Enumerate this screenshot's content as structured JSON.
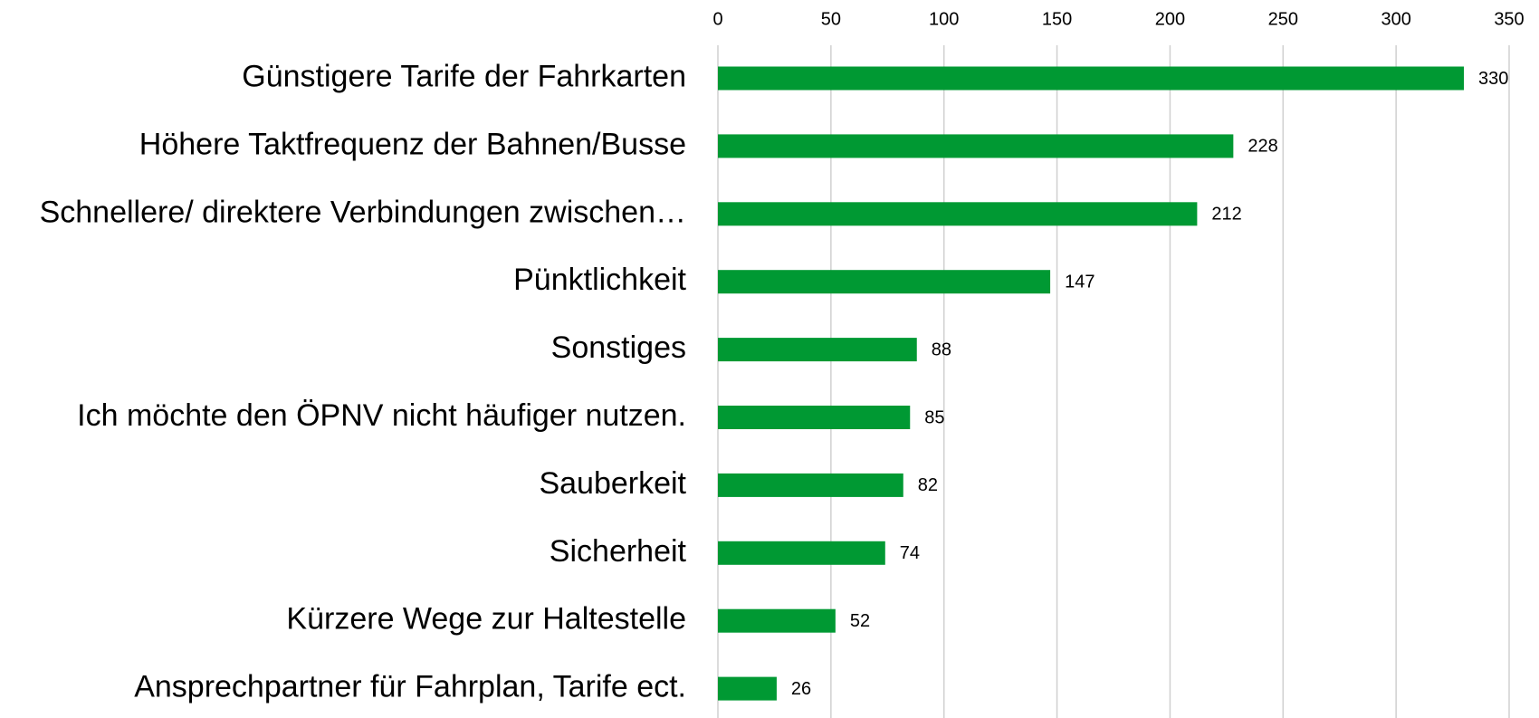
{
  "chart_data": {
    "type": "bar",
    "orientation": "horizontal",
    "categories": [
      "Günstigere Tarife der Fahrkarten",
      "Höhere Taktfrequenz der Bahnen/Busse",
      "Schnellere/ direktere Verbindungen zwischen…",
      "Pünktlichkeit",
      "Sonstiges",
      "Ich möchte den ÖPNV nicht häufiger nutzen.",
      "Sauberkeit",
      "Sicherheit",
      "Kürzere Wege zur Haltestelle",
      "Ansprechpartner für Fahrplan, Tarife ect."
    ],
    "values": [
      330,
      228,
      212,
      147,
      88,
      85,
      82,
      74,
      52,
      26
    ],
    "color": "#009933",
    "xlim": [
      0,
      350
    ],
    "xticks": [
      0,
      50,
      100,
      150,
      200,
      250,
      300,
      350
    ],
    "grid": true
  }
}
